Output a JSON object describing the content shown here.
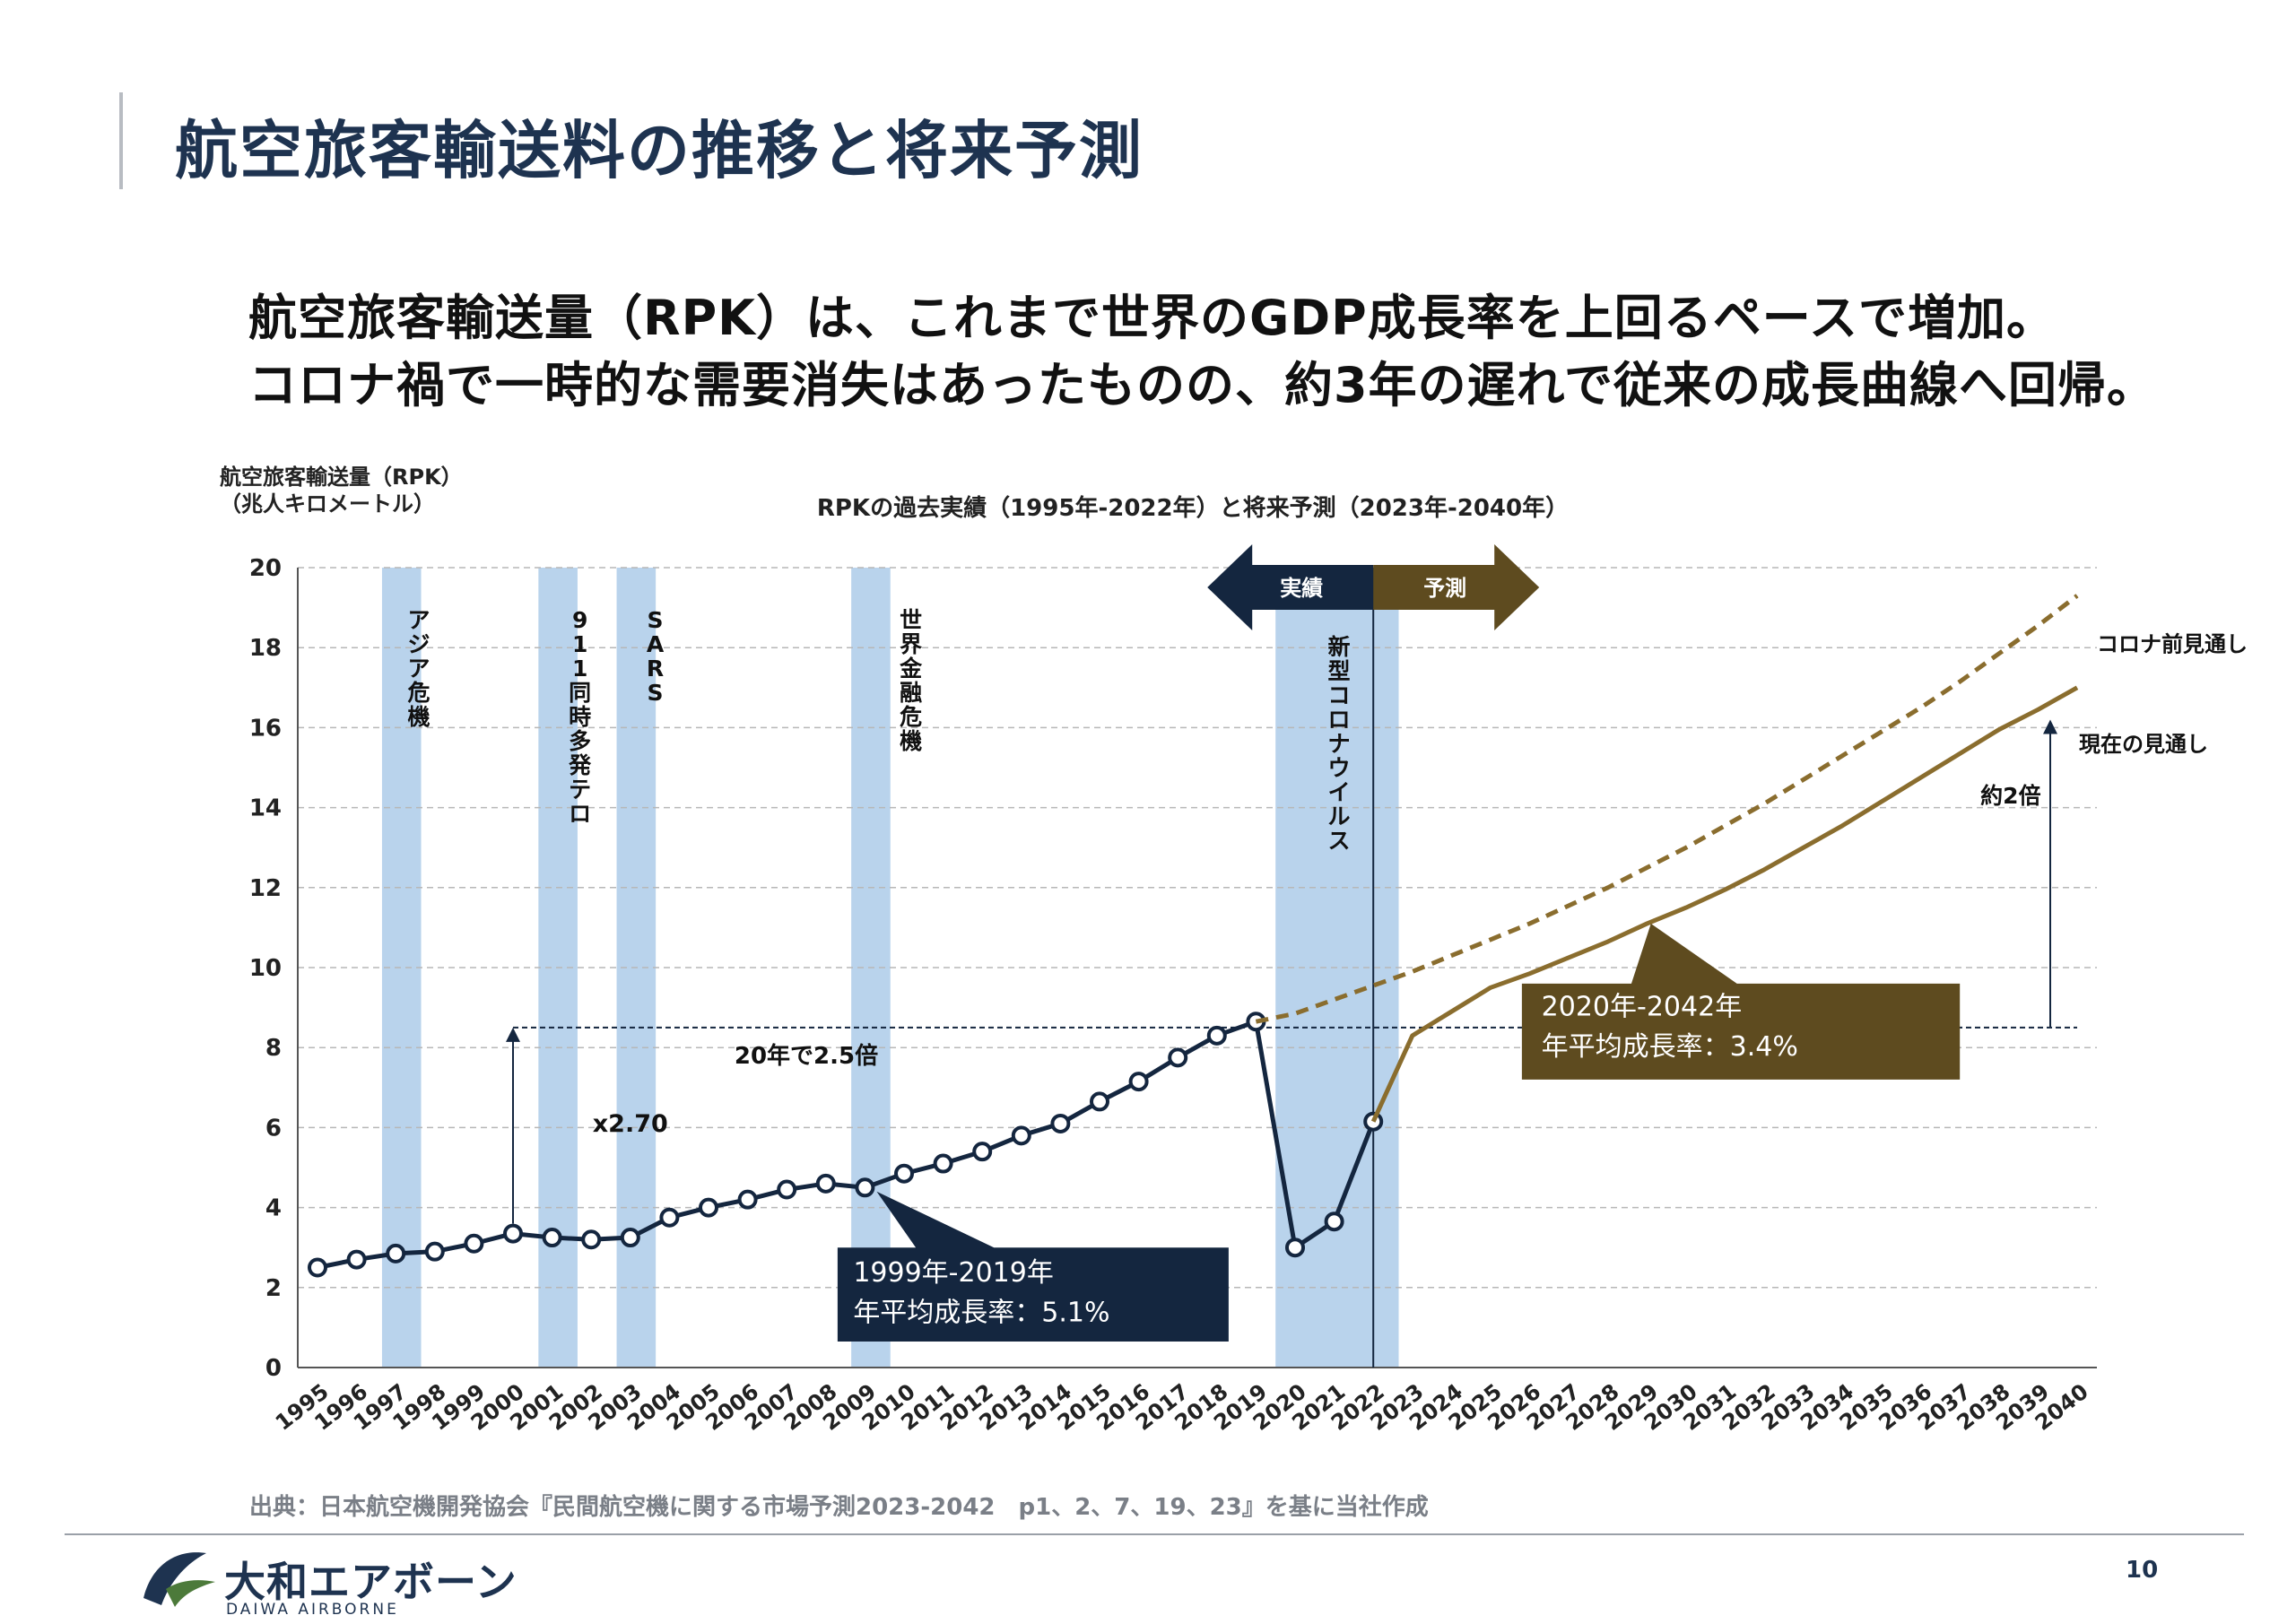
{
  "page": {
    "title": "航空旅客輸送料の推移と将来予測",
    "lead_line1": "航空旅客輸送量（RPK）は、これまで世界のGDP成長率を上回るペースで増加。",
    "lead_line2": "コロナ禍で一時的な需要消失はあったものの、約3年の遅れで従来の成長曲線へ回帰。",
    "source": "出典：日本航空機開発協会『民間航空機に関する市場予測2023-2042　p1、2、7、19、23』を基に当社作成",
    "logo_jp": "大和エアボーン",
    "logo_en": "DAIWA AIRBORNE",
    "page_number": "10"
  },
  "chart_data": {
    "type": "line",
    "title": "RPKの過去実績（1995年-2022年）と将来予測（2023年-2040年）",
    "ylabel_line1": "航空旅客輸送量（RPK）",
    "ylabel_line2": "（兆人キロメートル）",
    "ylim": [
      0,
      20
    ],
    "yticks": [
      "0",
      "2",
      "4",
      "6",
      "8",
      "10",
      "12",
      "14",
      "16",
      "18",
      "20"
    ],
    "categories": [
      "1995",
      "1996",
      "1997",
      "1998",
      "1999",
      "2000",
      "2001",
      "2002",
      "2003",
      "2004",
      "2005",
      "2006",
      "2007",
      "2008",
      "2009",
      "2010",
      "2011",
      "2012",
      "2013",
      "2014",
      "2015",
      "2016",
      "2017",
      "2018",
      "2019",
      "2020",
      "2021",
      "2022",
      "2023",
      "2024",
      "2025",
      "2026",
      "2027",
      "2028",
      "2029",
      "2030",
      "2031",
      "2032",
      "2033",
      "2034",
      "2035",
      "2036",
      "2037",
      "2038",
      "2039",
      "2040"
    ],
    "grid": true,
    "series": [
      {
        "name": "実績",
        "color": "#14263f",
        "x": [
          "1995",
          "1996",
          "1997",
          "1998",
          "1999",
          "2000",
          "2001",
          "2002",
          "2003",
          "2004",
          "2005",
          "2006",
          "2007",
          "2008",
          "2009",
          "2010",
          "2011",
          "2012",
          "2013",
          "2014",
          "2015",
          "2016",
          "2017",
          "2018",
          "2019",
          "2020",
          "2021",
          "2022"
        ],
        "values": [
          2.5,
          2.7,
          2.85,
          2.9,
          3.1,
          3.35,
          3.25,
          3.2,
          3.25,
          3.75,
          4.0,
          4.2,
          4.45,
          4.6,
          4.5,
          4.85,
          5.1,
          5.4,
          5.8,
          6.1,
          6.65,
          7.15,
          7.75,
          8.3,
          8.65,
          3.0,
          3.65,
          6.15
        ]
      },
      {
        "name": "コロナ前見通し",
        "color": "#8a6d2e",
        "dashed": true,
        "x": [
          "2019",
          "2020",
          "2021",
          "2022",
          "2023",
          "2024",
          "2025",
          "2026",
          "2027",
          "2028",
          "2029",
          "2030",
          "2031",
          "2032",
          "2033",
          "2034",
          "2035",
          "2036",
          "2037",
          "2038",
          "2039",
          "2040"
        ],
        "values": [
          8.65,
          8.85,
          9.2,
          9.55,
          9.9,
          10.3,
          10.7,
          11.1,
          11.55,
          12.0,
          12.5,
          13.0,
          13.55,
          14.1,
          14.7,
          15.3,
          15.9,
          16.5,
          17.15,
          17.85,
          18.55,
          19.3
        ]
      },
      {
        "name": "現在の見通し",
        "color": "#8a6d2e",
        "dashed": false,
        "x": [
          "2022",
          "2023",
          "2024",
          "2025",
          "2026",
          "2027",
          "2028",
          "2029",
          "2030",
          "2031",
          "2032",
          "2033",
          "2034",
          "2035",
          "2036",
          "2037",
          "2038",
          "2039",
          "2040"
        ],
        "values": [
          6.15,
          8.3,
          8.9,
          9.5,
          9.85,
          10.25,
          10.65,
          11.1,
          11.5,
          11.95,
          12.45,
          13.0,
          13.55,
          14.15,
          14.75,
          15.35,
          15.95,
          16.45,
          17.0
        ]
      }
    ],
    "bands": [
      {
        "label": "アジア危機",
        "from": 1996.65,
        "to": 1997.65
      },
      {
        "label": "911同時多発テロ",
        "from": 2000.65,
        "to": 2001.65
      },
      {
        "label": "SARS",
        "from": 2002.65,
        "to": 2003.65
      },
      {
        "label": "世界金融危機",
        "from": 2008.65,
        "to": 2009.65
      },
      {
        "label": "新型コロナウイルス",
        "from": 2019.5,
        "to": 2022.65
      }
    ],
    "annotations": {
      "actual_label": "実績",
      "forecast_label": "予測",
      "hist_growth_line1": "1999年-2019年",
      "hist_growth_line2": "年平均成長率：5.1%",
      "fcst_growth_line1": "2020年-2042年",
      "fcst_growth_line2": "年平均成長率：3.4%",
      "x_multiple": "x2.70",
      "twenty_years": "20年で2.5倍",
      "double": "約2倍",
      "pre_covid_label": "コロナ前見通し",
      "current_label": "現在の見通し",
      "reference_level": 8.5
    },
    "colors": {
      "navy": "#14263f",
      "gold": "#8a6d2e",
      "band": "#b9d3ec",
      "callout_gold": "#5e4b1f"
    }
  }
}
